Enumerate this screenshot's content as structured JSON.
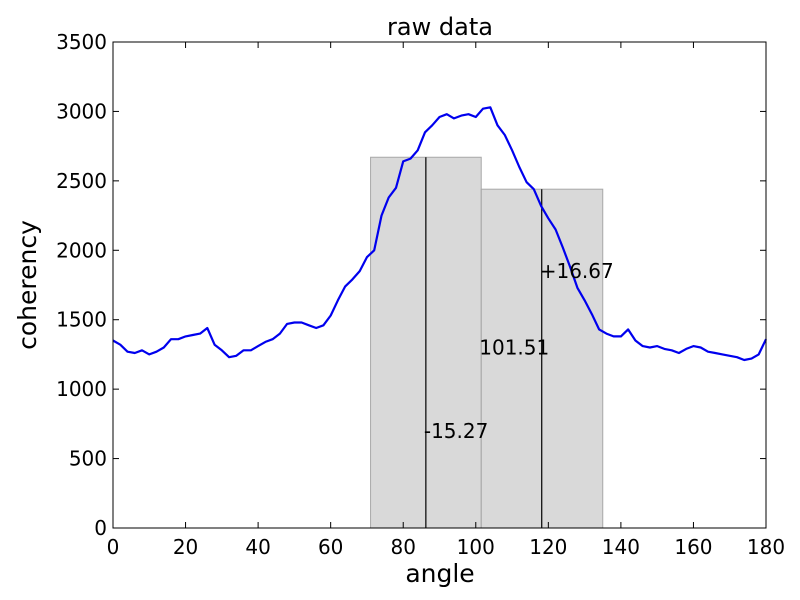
{
  "chart_data": {
    "type": "line",
    "title": "raw data",
    "xlabel": "angle",
    "ylabel": "coherency",
    "xlim": [
      0,
      180
    ],
    "ylim": [
      0,
      3500
    ],
    "xticks": [
      0,
      20,
      40,
      60,
      80,
      100,
      120,
      140,
      160,
      180
    ],
    "yticks": [
      0,
      500,
      1000,
      1500,
      2000,
      2500,
      3000,
      3500
    ],
    "grid": false,
    "line_color": "#0000ee",
    "bar_color": "#bfbfbf",
    "series": [
      {
        "x": [
          0,
          2,
          4,
          6,
          8,
          10,
          12,
          14,
          16,
          18,
          20,
          22,
          24,
          26,
          28,
          30,
          32,
          34,
          36,
          38,
          40,
          42,
          44,
          46,
          48,
          50,
          52,
          54,
          56,
          58,
          60,
          62,
          64,
          66,
          68,
          70,
          72,
          74,
          76,
          78,
          80,
          82,
          84,
          86,
          88,
          90,
          92,
          94,
          96,
          98,
          100,
          102,
          104,
          106,
          108,
          110,
          112,
          114,
          116,
          118,
          120,
          122,
          124,
          126,
          128,
          130,
          132,
          134,
          136,
          138,
          140,
          142,
          144,
          146,
          148,
          150,
          152,
          154,
          156,
          158,
          160,
          162,
          164,
          166,
          168,
          170,
          172,
          174,
          176,
          178,
          180
        ],
        "y": [
          1350,
          1320,
          1270,
          1260,
          1280,
          1250,
          1270,
          1300,
          1360,
          1360,
          1380,
          1390,
          1400,
          1440,
          1320,
          1280,
          1230,
          1240,
          1280,
          1280,
          1310,
          1340,
          1360,
          1400,
          1470,
          1480,
          1480,
          1460,
          1440,
          1460,
          1530,
          1640,
          1740,
          1790,
          1850,
          1950,
          2000,
          2250,
          2380,
          2450,
          2640,
          2660,
          2720,
          2850,
          2900,
          2960,
          2980,
          2950,
          2970,
          2980,
          2960,
          3020,
          3030,
          2900,
          2830,
          2720,
          2600,
          2490,
          2440,
          2320,
          2230,
          2150,
          2020,
          1880,
          1730,
          1640,
          1540,
          1430,
          1400,
          1380,
          1380,
          1430,
          1350,
          1310,
          1300,
          1310,
          1290,
          1280,
          1260,
          1290,
          1310,
          1300,
          1270,
          1260,
          1250,
          1240,
          1230,
          1210,
          1220,
          1250,
          1360
        ]
      }
    ],
    "bars": [
      {
        "x0": 71,
        "x1": 101.5,
        "height": 2670
      },
      {
        "x0": 101.5,
        "x1": 135,
        "height": 2440
      }
    ],
    "vlines": [
      {
        "x": 86.24,
        "y0": 0,
        "y1": 2670
      },
      {
        "x": 118.18,
        "y0": 0,
        "y1": 2440
      }
    ],
    "annotations": [
      {
        "text": "-15.27",
        "x": 86.24,
        "y": 700
      },
      {
        "text": "101.51",
        "x": 101.51,
        "y": 1300
      },
      {
        "text": "+16.67",
        "x": 118.18,
        "y": 1850
      }
    ]
  }
}
